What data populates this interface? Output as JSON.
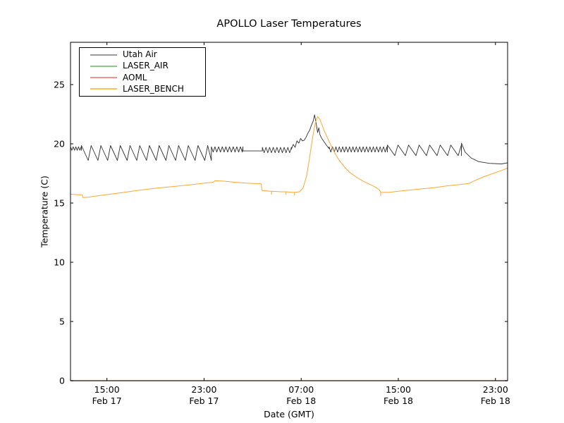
{
  "title": "APOLLO Laser Temperatures",
  "axes": {
    "xlabel": "Date (GMT)",
    "ylabel": "Temperature (C)"
  },
  "legend": {
    "entries": [
      {
        "label": "Utah Air",
        "swatch_color": "#9b9b9b"
      },
      {
        "label": "LASER_AIR",
        "swatch_color": "#8cc98c"
      },
      {
        "label": "AOML",
        "swatch_color": "#f29191"
      },
      {
        "label": "LASER_BENCH",
        "swatch_color": "#fcc25c"
      }
    ]
  },
  "chart_data": {
    "type": "line",
    "title": "APOLLO Laser Temperatures",
    "xlabel": "Date (GMT)",
    "ylabel": "Temperature (C)",
    "x_unit": "hours after Feb 17 12:00 GMT (left edge of plot)",
    "xlim": [
      0,
      36
    ],
    "ylim": [
      0,
      28.57
    ],
    "grid": false,
    "legend_position": "upper left",
    "x_ticks": [
      {
        "h": 3,
        "time": "15:00",
        "date": "Feb 17"
      },
      {
        "h": 11,
        "time": "23:00",
        "date": "Feb 17"
      },
      {
        "h": 19,
        "time": "07:00",
        "date": "Feb 18"
      },
      {
        "h": 27,
        "time": "15:00",
        "date": "Feb 18"
      },
      {
        "h": 35,
        "time": "23:00",
        "date": "Feb 18"
      }
    ],
    "y_ticks": [
      0,
      5,
      10,
      15,
      20,
      25
    ],
    "series": [
      {
        "name": "Utah Air",
        "color": "#2f2f2f",
        "width": 0.9,
        "segments": [
          {
            "type": "tri",
            "from": 0.0,
            "to": 0.9,
            "min": 19.45,
            "max": 19.75,
            "period": 0.22
          },
          {
            "type": "saw",
            "from": 0.9,
            "to": 11.6,
            "min": 18.6,
            "max": 19.85,
            "period": 0.8
          },
          {
            "type": "tri",
            "from": 11.6,
            "to": 14.2,
            "min": 19.3,
            "max": 19.75,
            "period": 0.3
          },
          {
            "type": "points",
            "pts": [
              [
                14.2,
                19.4
              ],
              [
                15.8,
                19.4
              ]
            ]
          },
          {
            "type": "tri",
            "from": 15.8,
            "to": 18.2,
            "min": 19.25,
            "max": 19.7,
            "period": 0.3
          },
          {
            "type": "points",
            "pts": [
              [
                18.2,
                19.55
              ],
              [
                18.35,
                19.95
              ],
              [
                18.5,
                19.7
              ],
              [
                18.65,
                20.25
              ],
              [
                18.8,
                20.05
              ],
              [
                18.95,
                20.45
              ],
              [
                19.1,
                20.25
              ],
              [
                19.25,
                20.3
              ],
              [
                19.4,
                20.55
              ],
              [
                19.55,
                20.9
              ],
              [
                19.7,
                21.15
              ],
              [
                19.8,
                21.45
              ],
              [
                19.9,
                21.7
              ],
              [
                20.0,
                21.95
              ],
              [
                20.1,
                22.45
              ],
              [
                20.25,
                21.6
              ],
              [
                20.35,
                20.95
              ],
              [
                20.45,
                21.35
              ],
              [
                20.55,
                20.75
              ],
              [
                20.7,
                20.45
              ],
              [
                20.9,
                20.15
              ],
              [
                21.1,
                19.85
              ],
              [
                21.3,
                19.6
              ]
            ]
          },
          {
            "type": "tri",
            "from": 21.3,
            "to": 26.1,
            "min": 19.3,
            "max": 19.75,
            "period": 0.28
          },
          {
            "type": "saw",
            "from": 26.1,
            "to": 32.2,
            "min": 19.0,
            "max": 19.9,
            "period": 0.87
          },
          {
            "type": "points",
            "pts": [
              [
                32.2,
                20.05
              ],
              [
                32.5,
                19.3
              ],
              [
                33.0,
                18.8
              ],
              [
                33.6,
                18.5
              ],
              [
                34.5,
                18.35
              ],
              [
                35.5,
                18.3
              ],
              [
                36,
                18.4
              ]
            ]
          }
        ]
      },
      {
        "name": "LASER_AIR",
        "color": "#44a544",
        "width": 1,
        "note": "constant 0 across full range, hidden under x-axis spine",
        "segments": [
          {
            "type": "points",
            "pts": [
              [
                0,
                0
              ],
              [
                36,
                0
              ]
            ]
          }
        ]
      },
      {
        "name": "AOML",
        "color": "#e5453c",
        "width": 1,
        "note": "constant 0 across full range, hidden under x-axis spine (tints spine brown)",
        "segments": [
          {
            "type": "points",
            "pts": [
              [
                0,
                0
              ],
              [
                36,
                0
              ]
            ]
          }
        ]
      },
      {
        "name": "LASER_BENCH",
        "color": "#ffa732",
        "width": 1,
        "segments": [
          {
            "type": "points",
            "pts": [
              [
                0,
                15.75
              ],
              [
                0.6,
                15.7
              ],
              [
                0.95,
                15.7
              ],
              [
                1.05,
                15.45
              ],
              [
                1.5,
                15.5
              ],
              [
                2.5,
                15.65
              ],
              [
                4,
                15.85
              ],
              [
                5.5,
                16.05
              ],
              [
                7,
                16.25
              ],
              [
                8.5,
                16.4
              ],
              [
                10,
                16.55
              ],
              [
                11.2,
                16.7
              ],
              [
                11.75,
                16.75
              ],
              [
                11.9,
                16.88
              ],
              [
                12.6,
                16.85
              ],
              [
                13.6,
                16.75
              ],
              [
                14.6,
                16.67
              ],
              [
                15.7,
                16.62
              ],
              [
                15.78,
                16.05
              ],
              [
                16.4,
                16.0
              ],
              [
                16.55,
                16.0
              ],
              [
                16.55,
                15.72
              ],
              [
                16.55,
                16.0
              ],
              [
                17.4,
                15.95
              ],
              [
                17.75,
                15.95
              ],
              [
                17.75,
                15.72
              ],
              [
                17.75,
                15.95
              ],
              [
                18.3,
                15.9
              ],
              [
                18.45,
                15.9
              ],
              [
                18.45,
                15.65
              ],
              [
                18.45,
                15.9
              ],
              [
                18.85,
                15.95
              ],
              [
                19.15,
                16.25
              ],
              [
                19.45,
                17.3
              ],
              [
                19.7,
                18.9
              ],
              [
                19.95,
                20.6
              ],
              [
                20.15,
                21.7
              ],
              [
                20.35,
                22.3
              ],
              [
                20.55,
                22.05
              ],
              [
                20.9,
                21.1
              ],
              [
                21.3,
                20.2
              ],
              [
                21.7,
                19.35
              ],
              [
                22.1,
                18.65
              ],
              [
                22.6,
                18.0
              ],
              [
                23.1,
                17.5
              ],
              [
                23.6,
                17.15
              ],
              [
                24.1,
                16.85
              ],
              [
                24.6,
                16.6
              ],
              [
                25.1,
                16.35
              ],
              [
                25.45,
                16.1
              ],
              [
                25.55,
                15.9
              ],
              [
                25.55,
                15.62
              ],
              [
                25.55,
                15.9
              ],
              [
                26.2,
                15.9
              ],
              [
                27,
                16.0
              ],
              [
                28,
                16.1
              ],
              [
                29,
                16.2
              ],
              [
                30,
                16.3
              ],
              [
                31,
                16.45
              ],
              [
                32,
                16.55
              ],
              [
                32.8,
                16.65
              ],
              [
                33.2,
                16.85
              ],
              [
                34,
                17.2
              ],
              [
                34.8,
                17.5
              ],
              [
                35.5,
                17.75
              ],
              [
                36,
                17.95
              ]
            ]
          }
        ]
      }
    ]
  }
}
